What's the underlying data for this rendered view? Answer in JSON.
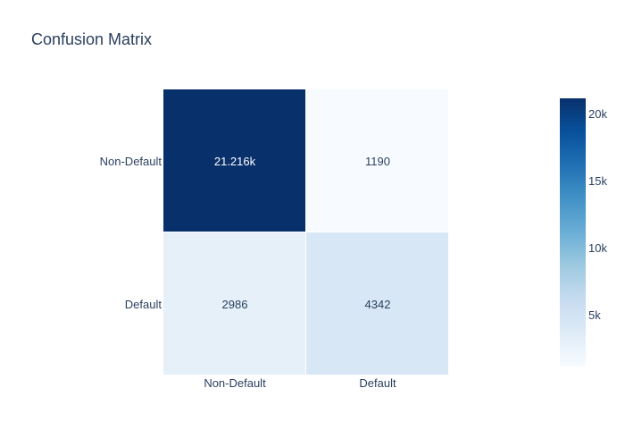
{
  "chart_data": {
    "type": "heatmap",
    "title": "Confusion Matrix",
    "x_categories": [
      "Non-Default",
      "Default"
    ],
    "y_categories": [
      "Non-Default",
      "Default"
    ],
    "z": [
      [
        21216,
        1190
      ],
      [
        2986,
        4342
      ]
    ],
    "cell_labels": [
      [
        "21.216k",
        "1190"
      ],
      [
        "2986",
        "4342"
      ]
    ],
    "colorscale": "Blues",
    "colorbar": {
      "range": [
        1190,
        21216
      ],
      "tick_values": [
        5000,
        10000,
        15000,
        20000
      ],
      "tick_labels": [
        "5k",
        "10k",
        "15k",
        "20k"
      ]
    },
    "colors": {
      "text_dark": "#2a3f5f",
      "text_light": "#ffffff"
    }
  }
}
